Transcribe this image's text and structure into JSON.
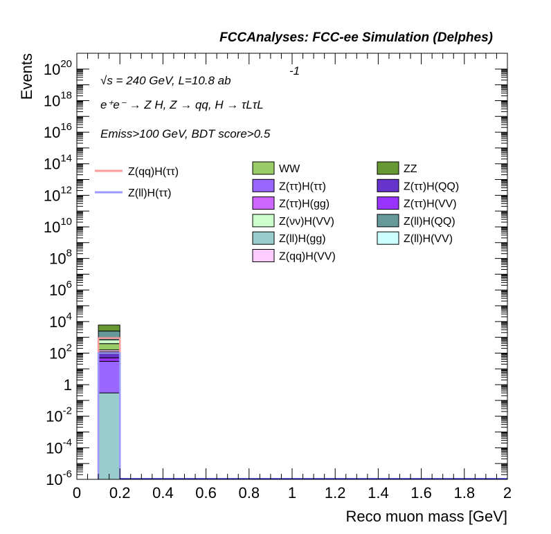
{
  "header": {
    "title": "FCCAnalyses: FCC-ee Simulation (Delphes)"
  },
  "annotations": {
    "line1": "√s = 240 GeV, L=10.8 ab",
    "line1_exp": "-1",
    "line2": "e⁺e⁻ → Z H, Z → qq, H → τLτL",
    "line3": "Emiss>100 GeV, BDT score>0.5"
  },
  "chart_data": {
    "type": "bar",
    "xlabel": "Reco muon mass [GeV]",
    "ylabel": "Events",
    "xlim": [
      0,
      2
    ],
    "ylim": [
      1e-06,
      1e+21
    ],
    "yscale": "log",
    "x_ticks": [
      "0",
      "0.2",
      "0.4",
      "0.6",
      "0.8",
      "1",
      "1.2",
      "1.4",
      "1.6",
      "1.8",
      "2"
    ],
    "y_ticks": [
      {
        "base": "10",
        "exp": "20",
        "value": 1e+20
      },
      {
        "base": "10",
        "exp": "18",
        "value": 1e+18
      },
      {
        "base": "10",
        "exp": "16",
        "value": 1e+16
      },
      {
        "base": "10",
        "exp": "14",
        "value": 100000000000000.0
      },
      {
        "base": "10",
        "exp": "12",
        "value": 1000000000000.0
      },
      {
        "base": "10",
        "exp": "10",
        "value": 10000000000.0
      },
      {
        "base": "10",
        "exp": "8",
        "value": 100000000.0
      },
      {
        "base": "10",
        "exp": "6",
        "value": 1000000.0
      },
      {
        "base": "10",
        "exp": "4",
        "value": 10000.0
      },
      {
        "base": "10",
        "exp": "2",
        "value": 100
      },
      {
        "base": "1",
        "exp": "",
        "value": 1
      },
      {
        "base": "10",
        "exp": "-2",
        "value": 0.01
      },
      {
        "base": "10",
        "exp": "-4",
        "value": 0.0001
      },
      {
        "base": "10",
        "exp": "-6",
        "value": 1e-06
      }
    ],
    "bin": [
      0.1,
      0.2
    ],
    "stack": [
      {
        "name": "Z(ll)H(gg)",
        "color": "#99cccc",
        "top": 0.3
      },
      {
        "name": "Z(ττ)H(ττ)",
        "color": "#9966ff",
        "top": 30
      },
      {
        "name": "Z(ττ)H(VV)",
        "color": "#9933ff",
        "top": 50
      },
      {
        "name": "Z(ττ)H(QQ)",
        "color": "#6633cc",
        "top": 90
      },
      {
        "name": "Z(ll)H(VV)",
        "color": "#ccffff",
        "top": 100
      },
      {
        "name": "Z(ττ)H(gg)",
        "color": "#cc66ff",
        "top": 120
      },
      {
        "name": "Z(qq)H(VV)",
        "color": "#ffccff",
        "top": 160
      },
      {
        "name": "WW",
        "color": "#99cc66",
        "top": 400
      },
      {
        "name": "Z(νν)H(VV)",
        "color": "#ccffcc",
        "top": 700
      },
      {
        "name": "Z(ll)H(QQ)",
        "color": "#669999",
        "top": 2500
      },
      {
        "name": "ZZ",
        "color": "#669933",
        "top": 6000
      }
    ],
    "signals": [
      {
        "name": "Z(qq)H(ττ)",
        "color": "#ff9999",
        "value": 900
      },
      {
        "name": "Z(ll)H(ττ)",
        "color": "#9999ff",
        "value": 100
      }
    ],
    "legend_signals": [
      "Z(qq)H(ττ)",
      "Z(ll)H(ττ)"
    ],
    "legend_col1": [
      "WW",
      "Z(ττ)H(ττ)",
      "Z(ττ)H(gg)",
      "Z(νν)H(VV)",
      "Z(ll)H(gg)",
      "Z(qq)H(VV)"
    ],
    "legend_col2": [
      "ZZ",
      "Z(ττ)H(QQ)",
      "Z(ττ)H(VV)",
      "Z(ll)H(QQ)",
      "Z(ll)H(VV)"
    ]
  }
}
